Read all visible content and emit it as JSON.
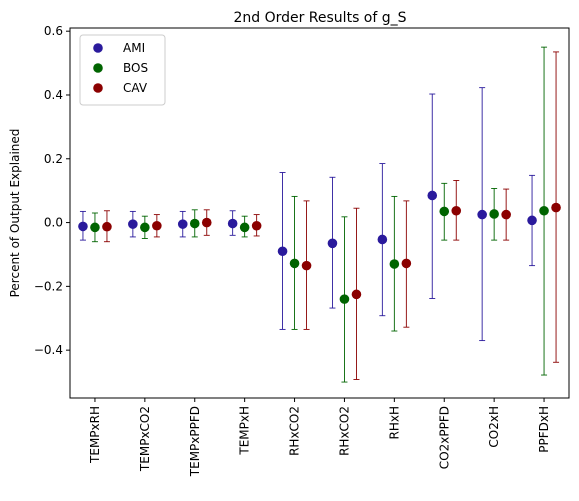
{
  "chart_data": {
    "type": "scatter",
    "title": "2nd Order Results of g_S",
    "xlabel": "",
    "ylabel": "Percent of Output Explained",
    "ylim": [
      -0.55,
      0.61
    ],
    "yticks": [
      -0.4,
      -0.2,
      0.0,
      0.2,
      0.4,
      0.6
    ],
    "ytick_labels": [
      "−0.4",
      "−0.2",
      "0.0",
      "0.2",
      "0.4",
      "0.6"
    ],
    "grid": false,
    "legend_position": "top-left",
    "categories": [
      "TEMPxRH",
      "TEMPxCO2",
      "TEMPxPPFD",
      "TEMPxH",
      "RHxCO2",
      "RHxCO2",
      "RHxH",
      "CO2xPPFD",
      "CO2xH",
      "PPFDxH"
    ],
    "series": [
      {
        "name": "AMI",
        "color": "#2a1a9c",
        "values": [
          -0.012,
          -0.005,
          -0.005,
          -0.003,
          -0.09,
          -0.065,
          -0.053,
          0.085,
          0.025,
          0.007
        ],
        "lower": [
          -0.055,
          -0.045,
          -0.045,
          -0.04,
          -0.335,
          -0.268,
          -0.292,
          -0.238,
          -0.37,
          -0.135
        ],
        "upper": [
          0.035,
          0.035,
          0.035,
          0.037,
          0.157,
          0.142,
          0.185,
          0.403,
          0.423,
          0.148
        ]
      },
      {
        "name": "BOS",
        "color": "#006400",
        "values": [
          -0.015,
          -0.015,
          -0.003,
          -0.015,
          -0.128,
          -0.24,
          -0.13,
          0.035,
          0.027,
          0.037
        ],
        "lower": [
          -0.06,
          -0.05,
          -0.045,
          -0.045,
          -0.335,
          -0.5,
          -0.34,
          -0.055,
          -0.055,
          -0.478
        ],
        "upper": [
          0.03,
          0.02,
          0.04,
          0.02,
          0.082,
          0.018,
          0.082,
          0.123,
          0.107,
          0.55
        ]
      },
      {
        "name": "CAV",
        "color": "#8b0000",
        "values": [
          -0.013,
          -0.01,
          0.0,
          -0.01,
          -0.135,
          -0.225,
          -0.128,
          0.037,
          0.025,
          0.047
        ],
        "lower": [
          -0.06,
          -0.045,
          -0.04,
          -0.042,
          -0.335,
          -0.492,
          -0.328,
          -0.055,
          -0.055,
          -0.438
        ],
        "upper": [
          0.037,
          0.025,
          0.04,
          0.025,
          0.068,
          0.045,
          0.068,
          0.132,
          0.105,
          0.535
        ]
      }
    ]
  }
}
